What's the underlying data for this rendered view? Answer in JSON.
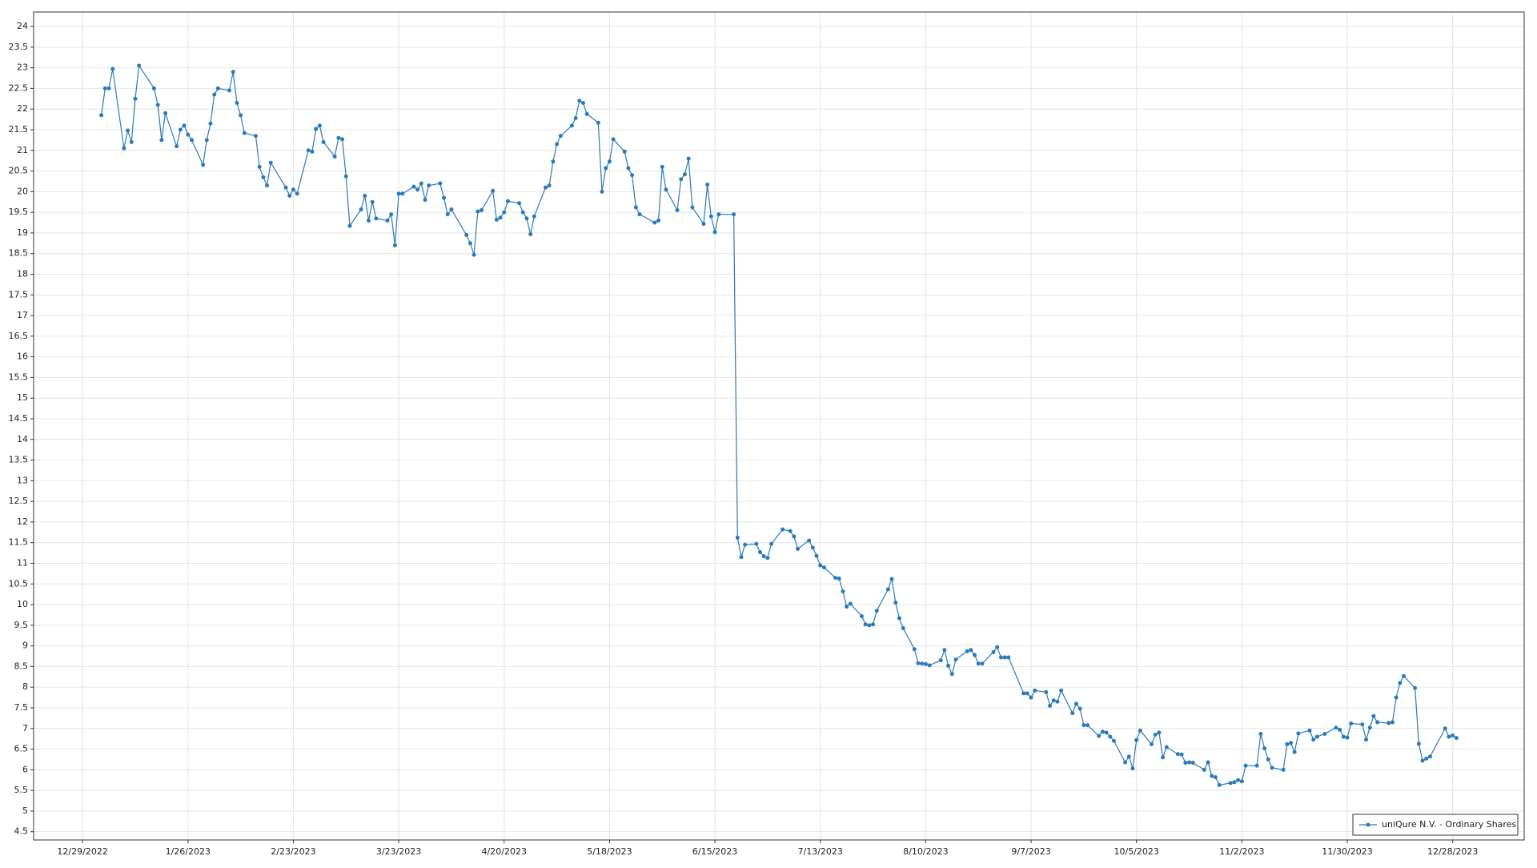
{
  "chart_data": {
    "type": "line",
    "x": [
      "1/3/2023",
      "1/4/2023",
      "1/5/2023",
      "1/6/2023",
      "1/9/2023",
      "1/10/2023",
      "1/11/2023",
      "1/12/2023",
      "1/13/2023",
      "1/17/2023",
      "1/18/2023",
      "1/19/2023",
      "1/20/2023",
      "1/23/2023",
      "1/24/2023",
      "1/25/2023",
      "1/26/2023",
      "1/27/2023",
      "1/30/2023",
      "1/31/2023",
      "2/1/2023",
      "2/2/2023",
      "2/3/2023",
      "2/6/2023",
      "2/7/2023",
      "2/8/2023",
      "2/9/2023",
      "2/10/2023",
      "2/13/2023",
      "2/14/2023",
      "2/15/2023",
      "2/16/2023",
      "2/17/2023",
      "2/21/2023",
      "2/22/2023",
      "2/23/2023",
      "2/24/2023",
      "2/27/2023",
      "2/28/2023",
      "3/1/2023",
      "3/2/2023",
      "3/3/2023",
      "3/6/2023",
      "3/7/2023",
      "3/8/2023",
      "3/9/2023",
      "3/10/2023",
      "3/13/2023",
      "3/14/2023",
      "3/15/2023",
      "3/16/2023",
      "3/17/2023",
      "3/20/2023",
      "3/21/2023",
      "3/22/2023",
      "3/23/2023",
      "3/24/2023",
      "3/27/2023",
      "3/28/2023",
      "3/29/2023",
      "3/30/2023",
      "3/31/2023",
      "4/3/2023",
      "4/4/2023",
      "4/5/2023",
      "4/6/2023",
      "4/10/2023",
      "4/11/2023",
      "4/12/2023",
      "4/13/2023",
      "4/14/2023",
      "4/17/2023",
      "4/18/2023",
      "4/19/2023",
      "4/20/2023",
      "4/21/2023",
      "4/24/2023",
      "4/25/2023",
      "4/26/2023",
      "4/27/2023",
      "4/28/2023",
      "5/1/2023",
      "5/2/2023",
      "5/3/2023",
      "5/4/2023",
      "5/5/2023",
      "5/8/2023",
      "5/9/2023",
      "5/10/2023",
      "5/11/2023",
      "5/12/2023",
      "5/15/2023",
      "5/16/2023",
      "5/17/2023",
      "5/18/2023",
      "5/19/2023",
      "5/22/2023",
      "5/23/2023",
      "5/24/2023",
      "5/25/2023",
      "5/26/2023",
      "5/30/2023",
      "5/31/2023",
      "6/1/2023",
      "6/2/2023",
      "6/5/2023",
      "6/6/2023",
      "6/7/2023",
      "6/8/2023",
      "6/9/2023",
      "6/12/2023",
      "6/13/2023",
      "6/14/2023",
      "6/15/2023",
      "6/16/2023",
      "6/20/2023",
      "6/21/2023",
      "6/22/2023",
      "6/23/2023",
      "6/26/2023",
      "6/27/2023",
      "6/28/2023",
      "6/29/2023",
      "6/30/2023",
      "7/3/2023",
      "7/5/2023",
      "7/6/2023",
      "7/7/2023",
      "7/10/2023",
      "7/11/2023",
      "7/12/2023",
      "7/13/2023",
      "7/14/2023",
      "7/17/2023",
      "7/18/2023",
      "7/19/2023",
      "7/20/2023",
      "7/21/2023",
      "7/24/2023",
      "7/25/2023",
      "7/26/2023",
      "7/27/2023",
      "7/28/2023",
      "7/31/2023",
      "8/1/2023",
      "8/2/2023",
      "8/3/2023",
      "8/4/2023",
      "8/7/2023",
      "8/8/2023",
      "8/9/2023",
      "8/10/2023",
      "8/11/2023",
      "8/14/2023",
      "8/15/2023",
      "8/16/2023",
      "8/17/2023",
      "8/18/2023",
      "8/21/2023",
      "8/22/2023",
      "8/23/2023",
      "8/24/2023",
      "8/25/2023",
      "8/28/2023",
      "8/29/2023",
      "8/30/2023",
      "8/31/2023",
      "9/1/2023",
      "9/5/2023",
      "9/6/2023",
      "9/7/2023",
      "9/8/2023",
      "9/11/2023",
      "9/12/2023",
      "9/13/2023",
      "9/14/2023",
      "9/15/2023",
      "9/18/2023",
      "9/19/2023",
      "9/20/2023",
      "9/21/2023",
      "9/22/2023",
      "9/25/2023",
      "9/26/2023",
      "9/27/2023",
      "9/28/2023",
      "9/29/2023",
      "10/2/2023",
      "10/3/2023",
      "10/4/2023",
      "10/5/2023",
      "10/6/2023",
      "10/9/2023",
      "10/10/2023",
      "10/11/2023",
      "10/12/2023",
      "10/13/2023",
      "10/16/2023",
      "10/17/2023",
      "10/18/2023",
      "10/19/2023",
      "10/20/2023",
      "10/23/2023",
      "10/24/2023",
      "10/25/2023",
      "10/26/2023",
      "10/27/2023",
      "10/30/2023",
      "10/31/2023",
      "11/1/2023",
      "11/2/2023",
      "11/3/2023",
      "11/6/2023",
      "11/7/2023",
      "11/8/2023",
      "11/9/2023",
      "11/10/2023",
      "11/13/2023",
      "11/14/2023",
      "11/15/2023",
      "11/16/2023",
      "11/17/2023",
      "11/20/2023",
      "11/21/2023",
      "11/22/2023",
      "11/24/2023",
      "11/27/2023",
      "11/28/2023",
      "11/29/2023",
      "11/30/2023",
      "12/1/2023",
      "12/4/2023",
      "12/5/2023",
      "12/6/2023",
      "12/7/2023",
      "12/8/2023",
      "12/11/2023",
      "12/12/2023",
      "12/13/2023",
      "12/14/2023",
      "12/15/2023",
      "12/18/2023",
      "12/19/2023",
      "12/20/2023",
      "12/21/2023",
      "12/22/2023",
      "12/26/2023",
      "12/27/2023",
      "12/28/2023",
      "12/29/2023"
    ],
    "series": [
      {
        "name": "uniQure N.V. - Ordinary Shares",
        "color": "#2b7bba",
        "values": [
          21.85,
          22.5,
          22.5,
          22.97,
          21.05,
          21.48,
          21.2,
          22.25,
          23.05,
          22.5,
          22.1,
          21.25,
          21.9,
          21.1,
          21.5,
          21.6,
          21.38,
          21.25,
          20.65,
          21.25,
          21.65,
          22.35,
          22.5,
          22.45,
          22.9,
          22.15,
          21.85,
          21.42,
          21.35,
          20.6,
          20.35,
          20.15,
          20.7,
          20.1,
          19.9,
          20.05,
          19.95,
          21.0,
          20.97,
          21.52,
          21.6,
          21.2,
          20.85,
          21.3,
          21.27,
          20.37,
          19.17,
          19.57,
          19.9,
          19.3,
          19.75,
          19.35,
          19.3,
          19.45,
          18.7,
          19.95,
          19.95,
          20.12,
          20.05,
          20.2,
          19.8,
          20.15,
          20.2,
          19.85,
          19.45,
          19.57,
          18.95,
          18.75,
          18.47,
          19.52,
          19.55,
          20.02,
          19.32,
          19.37,
          19.5,
          19.77,
          19.72,
          19.5,
          19.35,
          18.97,
          19.4,
          20.1,
          20.15,
          20.73,
          21.15,
          21.35,
          21.6,
          21.78,
          22.2,
          22.15,
          21.88,
          21.67,
          20.0,
          20.57,
          20.73,
          21.27,
          20.97,
          20.57,
          20.4,
          19.62,
          19.45,
          19.25,
          19.3,
          20.6,
          20.05,
          19.55,
          20.3,
          20.42,
          20.8,
          19.62,
          19.22,
          20.17,
          19.4,
          19.02,
          19.45,
          19.45,
          11.62,
          11.15,
          11.45,
          11.47,
          11.27,
          11.17,
          11.13,
          11.47,
          11.82,
          11.78,
          11.65,
          11.35,
          11.55,
          11.38,
          11.18,
          10.95,
          10.9,
          10.65,
          10.63,
          10.32,
          9.95,
          10.02,
          9.72,
          9.52,
          9.5,
          9.52,
          9.85,
          10.37,
          10.62,
          10.05,
          9.67,
          9.43,
          8.92,
          8.58,
          8.57,
          8.56,
          8.53,
          8.65,
          8.9,
          8.52,
          8.32,
          8.67,
          8.87,
          8.9,
          8.78,
          8.57,
          8.57,
          8.85,
          8.97,
          8.72,
          8.72,
          8.72,
          7.85,
          7.85,
          7.75,
          7.92,
          7.88,
          7.55,
          7.68,
          7.65,
          7.92,
          7.37,
          7.6,
          7.48,
          7.08,
          7.08,
          6.82,
          6.92,
          6.9,
          6.8,
          6.7,
          6.18,
          6.32,
          6.03,
          6.72,
          6.95,
          6.62,
          6.85,
          6.9,
          6.3,
          6.55,
          6.38,
          6.37,
          6.17,
          6.18,
          6.17,
          6.0,
          6.18,
          5.85,
          5.82,
          5.63,
          5.68,
          5.7,
          5.75,
          5.72,
          6.1,
          6.1,
          6.87,
          6.52,
          6.25,
          6.05,
          6.0,
          6.62,
          6.65,
          6.43,
          6.88,
          6.95,
          6.73,
          6.8,
          6.87,
          7.02,
          6.97,
          6.8,
          6.78,
          7.12,
          7.1,
          6.73,
          7.02,
          7.3,
          7.15,
          7.13,
          7.15,
          7.75,
          8.1,
          8.27,
          7.98,
          6.63,
          6.22,
          6.27,
          6.32,
          7.0,
          6.8,
          6.83,
          6.77
        ]
      }
    ],
    "xlim": [
      "12/16/2022",
      "1/16/2024"
    ],
    "xticks": [
      "12/29/2022",
      "1/26/2023",
      "2/23/2023",
      "3/23/2023",
      "4/20/2023",
      "5/18/2023",
      "6/15/2023",
      "7/13/2023",
      "8/10/2023",
      "9/7/2023",
      "10/5/2023",
      "11/2/2023",
      "11/30/2023",
      "12/28/2023"
    ],
    "ylim": [
      4.3,
      24.35
    ],
    "yticks": [
      4.5,
      5,
      5.5,
      6,
      6.5,
      7,
      7.5,
      8,
      8.5,
      9,
      9.5,
      10,
      10.5,
      11,
      11.5,
      12,
      12.5,
      13,
      13.5,
      14,
      14.5,
      15,
      15.5,
      16,
      16.5,
      17,
      17.5,
      18,
      18.5,
      19,
      19.5,
      20,
      20.5,
      21,
      21.5,
      22,
      22.5,
      23,
      23.5,
      24
    ],
    "grid": true,
    "legend": "bottom-right"
  }
}
